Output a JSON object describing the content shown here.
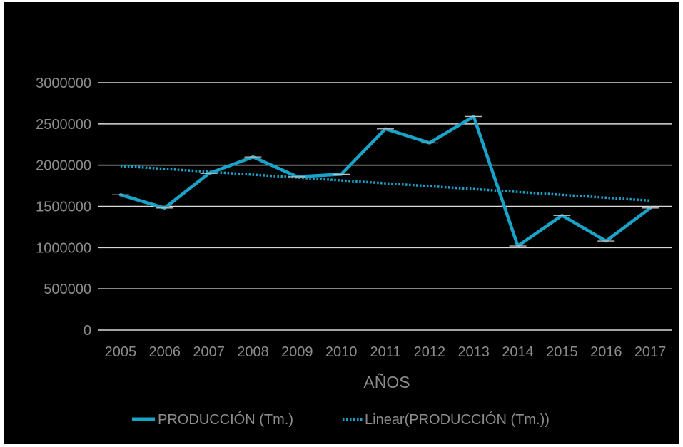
{
  "chart_data": {
    "type": "line",
    "title": "",
    "xlabel": "AÑOS",
    "ylabel": "",
    "categories": [
      "2005",
      "2006",
      "2007",
      "2008",
      "2009",
      "2010",
      "2011",
      "2012",
      "2013",
      "2014",
      "2015",
      "2016",
      "2017"
    ],
    "ylim": [
      0,
      3000000
    ],
    "yticks": [
      "0",
      "500000",
      "1000000",
      "1500000",
      "2000000",
      "2500000",
      "3000000"
    ],
    "series": [
      {
        "name": "PRODUCCIÓN (Tm.)",
        "values": [
          1640000,
          1480000,
          1900000,
          2100000,
          1860000,
          1890000,
          2440000,
          2270000,
          2590000,
          1020000,
          1390000,
          1080000,
          1480000
        ],
        "color": "#1aa3c9",
        "style": "solid",
        "error_caps": true
      },
      {
        "name": "Linear(PRODUCCIÓN (Tm.))",
        "values": [
          1990000,
          1955000,
          1920000,
          1885000,
          1850000,
          1815000,
          1780000,
          1745000,
          1710000,
          1675000,
          1640000,
          1605000,
          1570000
        ],
        "color": "#1aa3c9",
        "style": "dotted"
      }
    ],
    "grid": true,
    "legend_position": "bottom",
    "background": "#000000",
    "gridline_color": "#d9d9d9",
    "text_color": "#8c8c8c"
  }
}
